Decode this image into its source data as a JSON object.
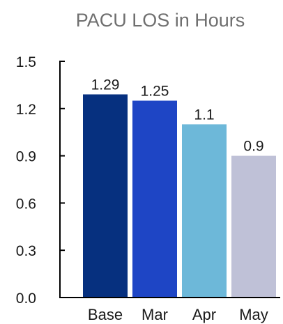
{
  "chart_data": {
    "type": "bar",
    "title": "PACU LOS in Hours",
    "xlabel": "",
    "ylabel": "",
    "categories": [
      "Base",
      "Mar",
      "Apr",
      "May"
    ],
    "values": [
      1.29,
      1.25,
      1.1,
      0.9
    ],
    "data_labels": [
      "1.29",
      "1.25",
      "1.1",
      "0.9"
    ],
    "ylim": [
      0,
      1.5
    ],
    "yticks": [
      0,
      0.3,
      0.6,
      0.9,
      1.2,
      1.5
    ],
    "ytick_labels": [
      "0.0",
      "0.3",
      "0.6",
      "0.9",
      "1.2",
      "1.5"
    ],
    "bar_colors": [
      "#06307f",
      "#1e45c5",
      "#6db8d9",
      "#bfc1d7"
    ],
    "grid": false,
    "legend": "none"
  }
}
